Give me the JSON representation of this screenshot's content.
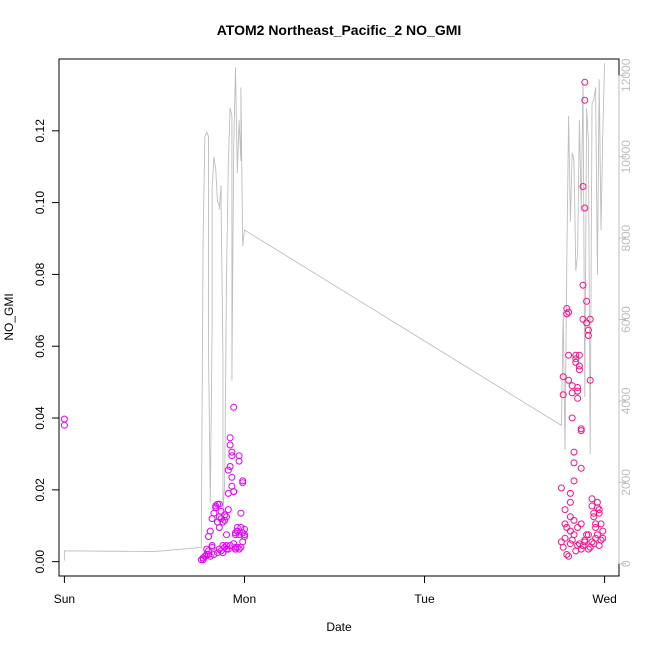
{
  "chart_data": {
    "type": "scatter",
    "title": "ATOM2 Northeast_Pacific_2 NO_GMI",
    "xlabel": "Date",
    "ylabel": "NO_GMI",
    "x_ticks": [
      "Sun",
      "Mon",
      "Tue",
      "Wed"
    ],
    "x_lim": [
      -0.03,
      3.08
    ],
    "ylim": [
      -0.004,
      0.14
    ],
    "y_ticks": [
      "0.00",
      "0.02",
      "0.04",
      "0.06",
      "0.08",
      "0.10",
      "0.12"
    ],
    "y2_lim": [
      -300,
      12400
    ],
    "y2_ticks": [
      "0",
      "2000",
      "4000",
      "6000",
      "8000",
      "10000",
      "12000"
    ],
    "grid": false,
    "colors": {
      "points_early": "#e100ff",
      "points_late": "#ff0f87",
      "line": "#bebebe",
      "axis": "#000000",
      "axis2": "#bebebe"
    },
    "series": [
      {
        "x": [
          0.0,
          0.0,
          0.76,
          0.77,
          0.78,
          0.79,
          0.8,
          0.8,
          0.81,
          0.82,
          0.82,
          0.83,
          0.84,
          0.84,
          0.85,
          0.85,
          0.86,
          0.86,
          0.86,
          0.87,
          0.87,
          0.88,
          0.88,
          0.89,
          0.89,
          0.9,
          0.9,
          0.9,
          0.91,
          0.91,
          0.91,
          0.92,
          0.92,
          0.92,
          0.93,
          0.93,
          0.93,
          0.93,
          0.94,
          0.94,
          0.94,
          0.95,
          0.95,
          0.95,
          0.95,
          0.96,
          0.96,
          0.96,
          0.97,
          0.97,
          0.97,
          0.98,
          0.98,
          0.99,
          0.99,
          0.99,
          1.0,
          1.0,
          0.77,
          0.78,
          0.79,
          0.8,
          0.81,
          0.82,
          0.83,
          0.85,
          0.86,
          0.87,
          0.88,
          0.89,
          0.9,
          0.91,
          0.92,
          0.94,
          0.95,
          0.96,
          0.97,
          0.98,
          0.99,
          1.0
        ],
        "y": [
          0.0397,
          0.038,
          0.0005,
          0.001,
          0.0015,
          0.002,
          0.003,
          0.007,
          0.0085,
          0.004,
          0.012,
          0.0135,
          0.015,
          0.0155,
          0.016,
          0.011,
          0.0095,
          0.0125,
          0.016,
          0.014,
          0.012,
          0.011,
          0.0045,
          0.0115,
          0.013,
          0.0035,
          0.0075,
          0.0125,
          0.0145,
          0.019,
          0.0255,
          0.0265,
          0.0325,
          0.0345,
          0.0305,
          0.0295,
          0.0235,
          0.021,
          0.0195,
          0.0195,
          0.043,
          0.0075,
          0.008,
          0.0035,
          0.004,
          0.0095,
          0.0085,
          0.0085,
          0.0075,
          0.028,
          0.0295,
          0.0095,
          0.0135,
          0.022,
          0.0225,
          0.008,
          0.009,
          0.0075,
          0.0005,
          0.0015,
          0.0035,
          0.002,
          0.0015,
          0.0045,
          0.002,
          0.0025,
          0.0035,
          0.003,
          0.0025,
          0.004,
          0.0045,
          0.0035,
          0.0045,
          0.005,
          0.0035,
          0.004,
          0.0035,
          0.004,
          0.0055,
          0.007
        ]
      },
      {
        "x": [
          2.76,
          2.77,
          2.77,
          2.78,
          2.78,
          2.79,
          2.79,
          2.8,
          2.8,
          2.8,
          2.81,
          2.81,
          2.81,
          2.82,
          2.82,
          2.82,
          2.83,
          2.83,
          2.83,
          2.84,
          2.84,
          2.84,
          2.85,
          2.85,
          2.85,
          2.86,
          2.86,
          2.86,
          2.87,
          2.87,
          2.87,
          2.88,
          2.88,
          2.88,
          2.89,
          2.89,
          2.89,
          2.9,
          2.9,
          2.91,
          2.91,
          2.92,
          2.92,
          2.93,
          2.93,
          2.94,
          2.94,
          2.95,
          2.95,
          2.96,
          2.96,
          2.97,
          2.97,
          2.98,
          2.99,
          2.76,
          2.77,
          2.78,
          2.79,
          2.8,
          2.81,
          2.82,
          2.83,
          2.84,
          2.85,
          2.86,
          2.87,
          2.88,
          2.89,
          2.9,
          2.91,
          2.92,
          2.93,
          2.94,
          2.95,
          2.96,
          2.97,
          2.98,
          2.99,
          2.79,
          2.81,
          2.83,
          2.85,
          2.87,
          2.89,
          2.91
        ],
        "y": [
          0.0205,
          0.0515,
          0.0465,
          0.0105,
          0.0145,
          0.0705,
          0.069,
          0.0695,
          0.0575,
          0.0505,
          0.019,
          0.0165,
          0.0125,
          0.04,
          0.047,
          0.049,
          0.0305,
          0.0225,
          0.0275,
          0.0575,
          0.0555,
          0.0565,
          0.0475,
          0.0485,
          0.0455,
          0.0575,
          0.0545,
          0.0535,
          0.026,
          0.0365,
          0.037,
          0.0675,
          0.077,
          0.1045,
          0.1285,
          0.1335,
          0.0985,
          0.0725,
          0.0665,
          0.0645,
          0.063,
          0.0675,
          0.0505,
          0.0175,
          0.0155,
          0.0135,
          0.0125,
          0.0105,
          0.0095,
          0.015,
          0.0165,
          0.0145,
          0.0135,
          0.0105,
          0.0085,
          0.0055,
          0.004,
          0.0065,
          0.002,
          0.0015,
          0.005,
          0.006,
          0.0075,
          0.003,
          0.0045,
          0.005,
          0.0035,
          0.0045,
          0.006,
          0.0075,
          0.0035,
          0.004,
          0.0055,
          0.005,
          0.0065,
          0.0075,
          0.0045,
          0.006,
          0.0065,
          0.0095,
          0.0085,
          0.0115,
          0.0095,
          0.0105,
          0.0055,
          0.0075
        ]
      },
      {
        "x": [
          0.0,
          0.0,
          0.5,
          0.76,
          0.77,
          0.78,
          0.79,
          0.8,
          0.8,
          0.81,
          0.82,
          0.82,
          0.83,
          0.84,
          0.85,
          0.86,
          0.86,
          0.87,
          0.87,
          0.88,
          0.88,
          0.89,
          0.9,
          0.91,
          0.92,
          0.93,
          0.93,
          0.94,
          0.95,
          0.96,
          0.97,
          0.98,
          0.98,
          0.99,
          1.0,
          2.76,
          2.77,
          2.78,
          2.79,
          2.8,
          2.81,
          2.82,
          2.83,
          2.84,
          2.85,
          2.86,
          2.87,
          2.88,
          2.89,
          2.9,
          2.91,
          2.92,
          2.93,
          2.94,
          2.95,
          2.96,
          2.97,
          2.98,
          2.99,
          3.0
        ],
        "y": [
          80,
          320,
          300,
          400,
          8000,
          10500,
          10600,
          10500,
          5200,
          1500,
          5800,
          9200,
          10000,
          9700,
          8900,
          8800,
          8700,
          9300,
          8800,
          5200,
          1200,
          2000,
          7000,
          9800,
          11200,
          11000,
          4500,
          10200,
          12200,
          9600,
          10900,
          9900,
          11700,
          7800,
          8200,
          3400,
          6200,
          2800,
          7400,
          11000,
          8400,
          10100,
          9900,
          7200,
          7600,
          10900,
          8700,
          11800,
          4100,
          11200,
          10400,
          2700,
          11300,
          11400,
          11700,
          7100,
          11900,
          8200,
          10600,
          12300
        ]
      }
    ]
  }
}
